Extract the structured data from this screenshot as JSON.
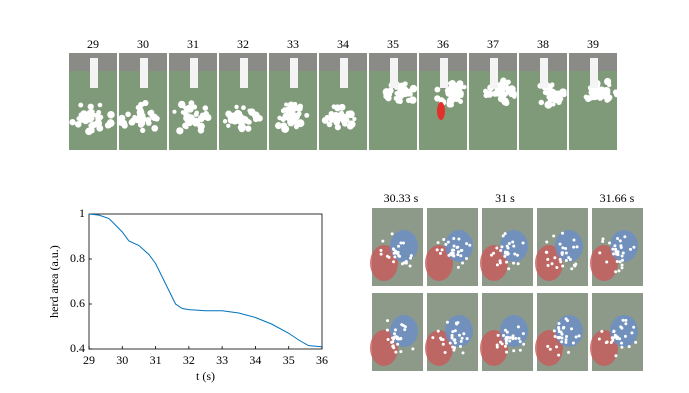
{
  "frames": {
    "labels": [
      "29",
      "30",
      "31",
      "32",
      "33",
      "34",
      "35",
      "36",
      "37",
      "38",
      "39"
    ]
  },
  "chart_data": {
    "type": "line",
    "xlabel": "t (s)",
    "ylabel": "herd area (a.u.)",
    "x": [
      29,
      29.3,
      29.6,
      29.8,
      30,
      30.2,
      30.5,
      30.8,
      31,
      31.2,
      31.4,
      31.6,
      31.8,
      32,
      32.5,
      33,
      33.5,
      34,
      34.5,
      35,
      35.3,
      35.6,
      36
    ],
    "values": [
      1.0,
      0.995,
      0.98,
      0.95,
      0.92,
      0.88,
      0.86,
      0.82,
      0.78,
      0.72,
      0.66,
      0.6,
      0.58,
      0.575,
      0.57,
      0.57,
      0.56,
      0.54,
      0.51,
      0.47,
      0.44,
      0.415,
      0.41
    ],
    "color": "#0072bd",
    "xlim": [
      29,
      36
    ],
    "xticks": [
      29,
      30,
      31,
      32,
      33,
      34,
      35,
      36
    ],
    "ylim": [
      0.4,
      1
    ],
    "yticks": [
      0.4,
      0.6,
      0.8,
      1
    ]
  },
  "panels": {
    "labels": [
      "30.33 s",
      "31 s",
      "31.66 s"
    ]
  }
}
